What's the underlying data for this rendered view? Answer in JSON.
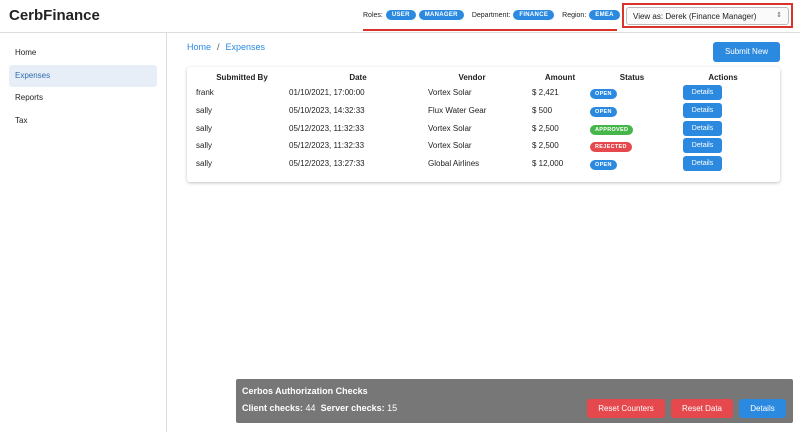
{
  "header": {
    "brand": "CerbFinance",
    "roles_label": "Roles:",
    "roles": [
      "USER",
      "MANAGER"
    ],
    "department_label": "Department:",
    "department": "FINANCE",
    "region_label": "Region:",
    "region": "EMEA",
    "view_as": "View as: Derek (Finance Manager)"
  },
  "sidebar": {
    "items": [
      "Home",
      "Expenses",
      "Reports",
      "Tax"
    ],
    "active": 1
  },
  "breadcrumb": [
    "Home",
    "Expenses"
  ],
  "submit_button": "Submit New",
  "table": {
    "headers": [
      "Submitted By",
      "Date",
      "Vendor",
      "Amount",
      "Status",
      "Actions"
    ],
    "rows": [
      {
        "submitted_by": "frank",
        "date": "01/10/2021, 17:00:00",
        "vendor": "Vortex Solar",
        "amount": "$ 2,421",
        "status": "OPEN",
        "status_color": "#2b8ae0",
        "action": "Details"
      },
      {
        "submitted_by": "sally",
        "date": "05/10/2023, 14:32:33",
        "vendor": "Flux Water Gear",
        "amount": "$ 500",
        "status": "OPEN",
        "status_color": "#2b8ae0",
        "action": "Details"
      },
      {
        "submitted_by": "sally",
        "date": "05/12/2023, 11:32:33",
        "vendor": "Vortex Solar",
        "amount": "$ 2,500",
        "status": "APPROVED",
        "status_color": "#45b649",
        "action": "Details"
      },
      {
        "submitted_by": "sally",
        "date": "05/12/2023, 11:32:33",
        "vendor": "Vortex Solar",
        "amount": "$ 2,500",
        "status": "REJECTED",
        "status_color": "#e5484d",
        "action": "Details"
      },
      {
        "submitted_by": "sally",
        "date": "05/12/2023, 13:27:33",
        "vendor": "Global Airlines",
        "amount": "$ 12,000",
        "status": "OPEN",
        "status_color": "#2b8ae0",
        "action": "Details"
      }
    ]
  },
  "panel": {
    "title": "Cerbos Authorization Checks",
    "client_label": "Client checks:",
    "client_checks": 44,
    "server_label": "Server checks:",
    "server_checks": 15,
    "buttons": [
      "Reset Counters",
      "Reset Data",
      "Details"
    ]
  }
}
